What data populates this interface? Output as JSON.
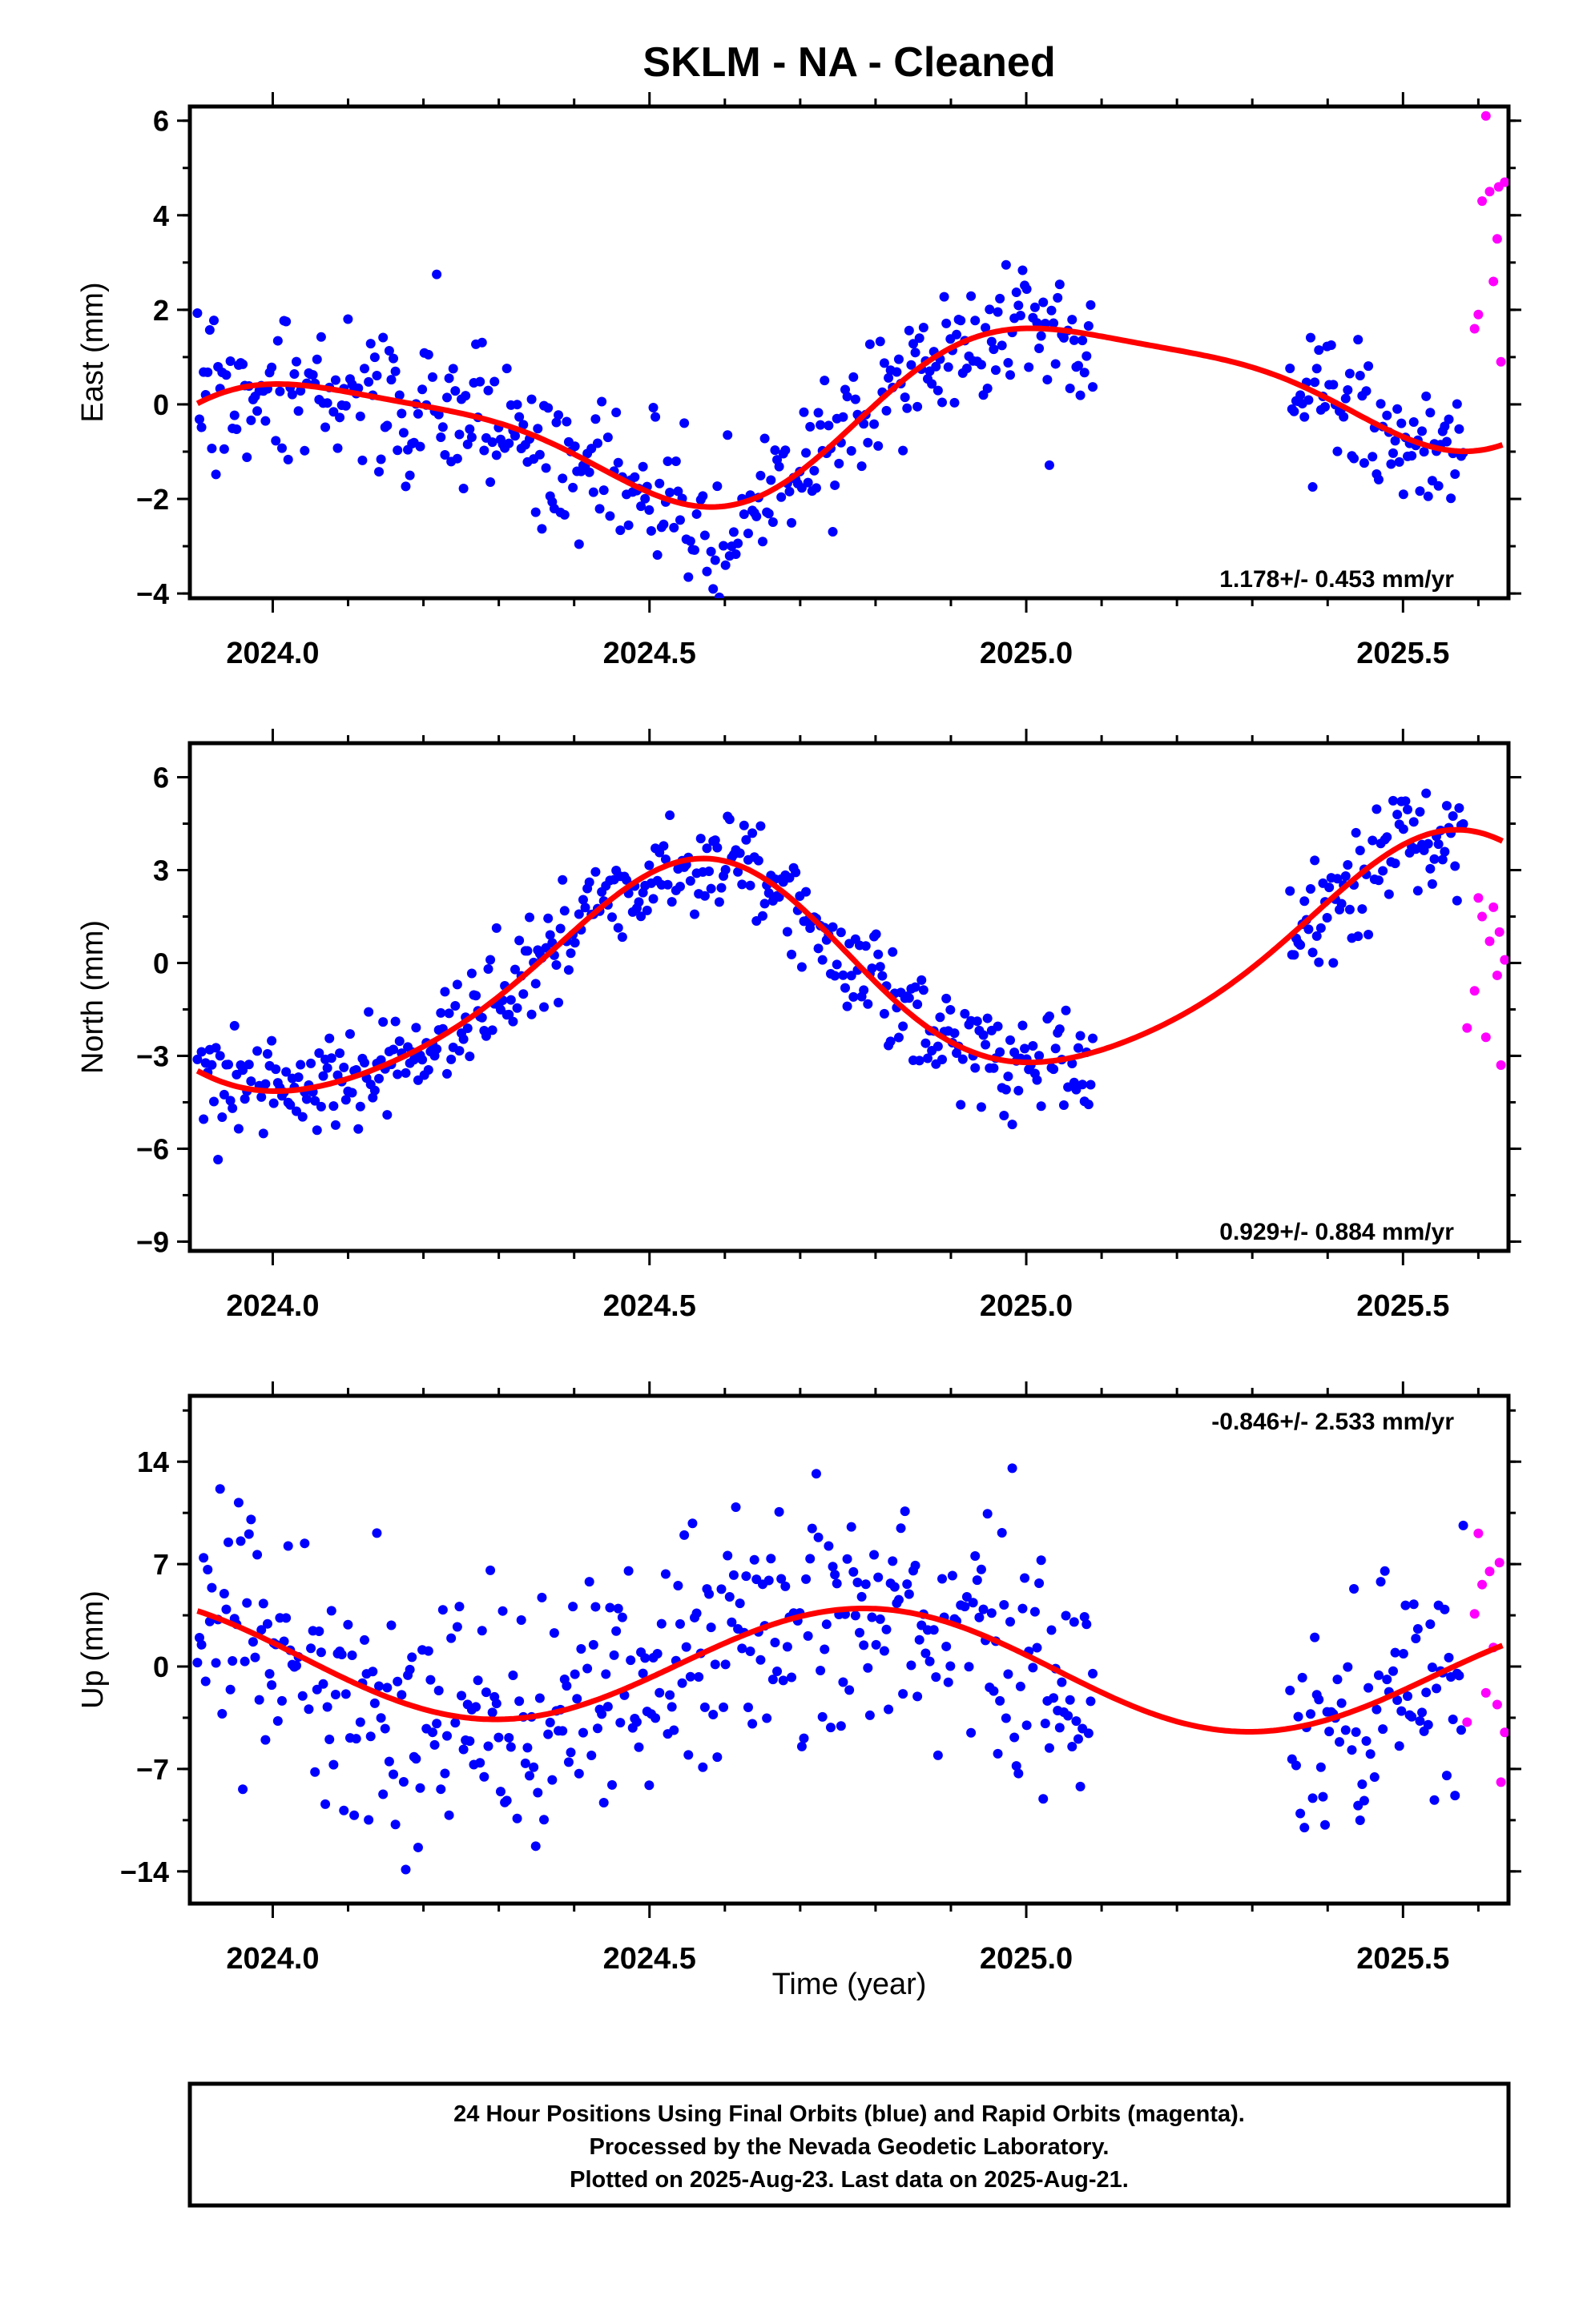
{
  "title": "SKLM  - NA - Cleaned",
  "colors": {
    "final": "#0000ff",
    "rapid": "#ff00ff",
    "model": "#ff0000",
    "frame": "#000000"
  },
  "x_axis": {
    "label": "Time (year)",
    "range": [
      2023.89,
      2025.64
    ],
    "ticks": [
      2024.0,
      2024.5,
      2025.0,
      2025.5
    ],
    "tick_labels": [
      "2024.0",
      "2024.5",
      "2025.0",
      "2025.5"
    ]
  },
  "footer": {
    "line1": "24 Hour Positions Using Final Orbits (blue) and Rapid Orbits (magenta).",
    "line2": "Processed by the Nevada Geodetic Laboratory.",
    "line3": "Plotted on 2025-Aug-23. Last data on 2025-Aug-21."
  },
  "chart_data": [
    {
      "type": "scatter",
      "component": "east",
      "ylabel": "East (mm)",
      "ylim": [
        -4.1,
        6.3
      ],
      "yticks": [
        6,
        4,
        2,
        0,
        -2,
        -4
      ],
      "ytick_labels": [
        "6",
        "4",
        "2",
        "0",
        "−2",
        "−4"
      ],
      "rate_label": "1.178+/- 0.453 mm/yr",
      "rate_position": "bottom-right",
      "model": {
        "mean": -0.15,
        "trend": 1.178,
        "t0": 2024.75,
        "amp1": 1.55,
        "phase1_peak": 0.06,
        "amp2": 0.35,
        "phase2_peak": 0.38
      },
      "final_scatter_sd": 0.75,
      "final_segments": [
        [
          2023.9,
          2025.09
        ],
        [
          2025.35,
          2025.58
        ]
      ],
      "rapid_points": [
        [
          2025.595,
          1.6
        ],
        [
          2025.6,
          1.9
        ],
        [
          2025.605,
          4.3
        ],
        [
          2025.61,
          6.1
        ],
        [
          2025.615,
          4.5
        ],
        [
          2025.62,
          2.6
        ],
        [
          2025.625,
          3.5
        ],
        [
          2025.627,
          4.6
        ],
        [
          2025.63,
          0.9
        ],
        [
          2025.635,
          4.7
        ]
      ]
    },
    {
      "type": "scatter",
      "component": "north",
      "ylabel": "North (mm)",
      "ylim": [
        -9.3,
        7.1
      ],
      "yticks": [
        6,
        3,
        0,
        -3,
        -6,
        -9
      ],
      "ytick_labels": [
        "6",
        "3",
        "0",
        "−3",
        "−6",
        "−9"
      ],
      "rate_label": "0.929+/- 0.884 mm/yr",
      "rate_position": "bottom-right",
      "model": {
        "mean": -0.3,
        "trend": 0.929,
        "t0": 2024.75,
        "amp1": 3.45,
        "phase1_peak": 0.55,
        "amp2": 0.45,
        "phase2_peak": 0.1
      },
      "final_scatter_sd": 0.85,
      "final_segments": [
        [
          2023.9,
          2025.09
        ],
        [
          2025.35,
          2025.58
        ]
      ],
      "rapid_points": [
        [
          2025.585,
          -2.1
        ],
        [
          2025.595,
          -0.9
        ],
        [
          2025.6,
          2.1
        ],
        [
          2025.605,
          1.5
        ],
        [
          2025.61,
          -2.4
        ],
        [
          2025.615,
          0.7
        ],
        [
          2025.62,
          1.8
        ],
        [
          2025.625,
          -0.4
        ],
        [
          2025.628,
          1.0
        ],
        [
          2025.63,
          -3.3
        ],
        [
          2025.635,
          0.1
        ]
      ]
    },
    {
      "type": "scatter",
      "component": "up",
      "ylabel": "Up (mm)",
      "ylim": [
        -16.2,
        18.5
      ],
      "yticks": [
        14,
        7,
        0,
        -7,
        -14
      ],
      "ytick_labels": [
        "14",
        "7",
        "0",
        "−7",
        "−14"
      ],
      "rate_label": "-0.846+/- 2.533 mm/yr",
      "rate_position": "top-right",
      "model": {
        "mean": 0.0,
        "trend": -0.846,
        "t0": 2024.75,
        "amp1": 4.0,
        "phase1_peak": 0.79,
        "amp2": 0.0,
        "phase2_peak": 0.0
      },
      "final_scatter_sd": 4.2,
      "final_segments": [
        [
          2023.9,
          2025.09
        ],
        [
          2025.35,
          2025.58
        ]
      ],
      "rapid_points": [
        [
          2025.585,
          -3.8
        ],
        [
          2025.595,
          3.6
        ],
        [
          2025.6,
          9.1
        ],
        [
          2025.605,
          5.6
        ],
        [
          2025.61,
          -1.8
        ],
        [
          2025.615,
          6.5
        ],
        [
          2025.62,
          1.3
        ],
        [
          2025.625,
          -2.6
        ],
        [
          2025.628,
          7.1
        ],
        [
          2025.63,
          -7.9
        ],
        [
          2025.635,
          -4.5
        ]
      ]
    }
  ]
}
